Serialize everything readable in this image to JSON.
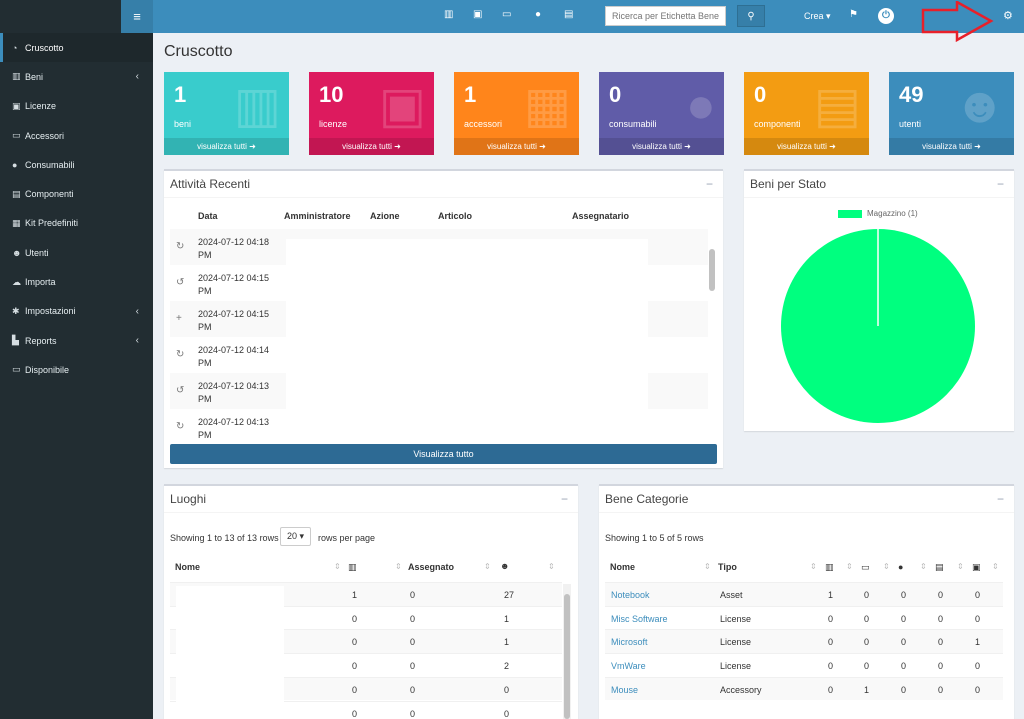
{
  "sidebar": {
    "items": [
      {
        "label": "Cruscotto",
        "icon": "dashboard-icon",
        "glyph": "◔",
        "active": true,
        "chevron": false
      },
      {
        "label": "Beni",
        "icon": "barcode-icon",
        "glyph": "▥",
        "active": false,
        "chevron": true
      },
      {
        "label": "Licenze",
        "icon": "save-icon",
        "glyph": "▣",
        "active": false,
        "chevron": false
      },
      {
        "label": "Accessori",
        "icon": "keyboard-icon",
        "glyph": "▭",
        "active": false,
        "chevron": false
      },
      {
        "label": "Consumabili",
        "icon": "drop-icon",
        "glyph": "●",
        "active": false,
        "chevron": false
      },
      {
        "label": "Componenti",
        "icon": "hdd-icon",
        "glyph": "▤",
        "active": false,
        "chevron": false
      },
      {
        "label": "Kit Predefiniti",
        "icon": "object-group-icon",
        "glyph": "▦",
        "active": false,
        "chevron": false
      },
      {
        "label": "Utenti",
        "icon": "users-icon",
        "glyph": "☻",
        "active": false,
        "chevron": false
      },
      {
        "label": "Importa",
        "icon": "cloud-upload-icon",
        "glyph": "☁",
        "active": false,
        "chevron": false
      },
      {
        "label": "Impostazioni",
        "icon": "cog-icon",
        "glyph": "✱",
        "active": false,
        "chevron": true
      },
      {
        "label": "Reports",
        "icon": "chart-icon",
        "glyph": "▙",
        "active": false,
        "chevron": true
      },
      {
        "label": "Disponibile",
        "icon": "laptop-icon",
        "glyph": "▭",
        "active": false,
        "chevron": false
      }
    ]
  },
  "header": {
    "search_placeholder": "Ricerca per Etichetta Bene",
    "create_label": "Crea ▾"
  },
  "page": {
    "title": "Cruscotto"
  },
  "tiles": [
    {
      "count": "1",
      "label": "beni",
      "link": "visualizza tutti ➜",
      "color": "#39cccc",
      "icon": "barcode-icon",
      "glyph": "▥"
    },
    {
      "count": "10",
      "label": "licenze",
      "link": "visualizza tutti ➜",
      "color": "#dd1a5e",
      "icon": "save-icon",
      "glyph": "▣"
    },
    {
      "count": "1",
      "label": "accessori",
      "link": "visualizza tutti ➜",
      "color": "#ff851b",
      "icon": "keyboard-icon",
      "glyph": "▦"
    },
    {
      "count": "0",
      "label": "consumabili",
      "link": "visualizza tutti ➜",
      "color": "#605ca8",
      "icon": "drop-icon",
      "glyph": "●"
    },
    {
      "count": "0",
      "label": "componenti",
      "link": "visualizza tutti ➜",
      "color": "#f39c12",
      "icon": "hdd-icon",
      "glyph": "▤"
    },
    {
      "count": "49",
      "label": "utenti",
      "link": "visualizza tutti ➜",
      "color": "#3c8dbc",
      "icon": "users-icon",
      "glyph": "☻"
    }
  ],
  "recent": {
    "title": "Attività Recenti",
    "headers": [
      "Data",
      "Amministratore",
      "Azione",
      "Articolo",
      "Assegnatario"
    ],
    "rows": [
      {
        "icon": "refresh-icon",
        "glyph": "↻",
        "date": "2024-07-12 04:18 PM"
      },
      {
        "icon": "undo-icon",
        "glyph": "↺",
        "date": "2024-07-12 04:15 PM"
      },
      {
        "icon": "plus-icon",
        "glyph": "+",
        "date": "2024-07-12 04:15 PM"
      },
      {
        "icon": "refresh-icon",
        "glyph": "↻",
        "date": "2024-07-12 04:14 PM"
      },
      {
        "icon": "undo-icon",
        "glyph": "↺",
        "date": "2024-07-12 04:13 PM"
      },
      {
        "icon": "refresh-icon",
        "glyph": "↻",
        "date": "2024-07-12 04:13 PM"
      }
    ],
    "view_all": "Visualizza tutto"
  },
  "status_chart": {
    "title": "Beni per Stato",
    "legend": "Magazzino (1)",
    "color": "#00ff7f"
  },
  "locations": {
    "title": "Luoghi",
    "info": "Showing 1 to 13 of 13 rows",
    "page_size": "20 ▾",
    "rows_label": "rows per page",
    "headers": {
      "name": "Nome",
      "assigned": "Assegnato"
    },
    "rows": [
      {
        "assets": "1",
        "assigned": "0",
        "users": "27"
      },
      {
        "assets": "0",
        "assigned": "0",
        "users": "1"
      },
      {
        "assets": "0",
        "assigned": "0",
        "users": "1"
      },
      {
        "assets": "0",
        "assigned": "0",
        "users": "2"
      },
      {
        "assets": "0",
        "assigned": "0",
        "users": "0"
      },
      {
        "assets": "0",
        "assigned": "0",
        "users": "0"
      }
    ]
  },
  "categories": {
    "title": "Bene Categorie",
    "info": "Showing 1 to 5 of 5 rows",
    "headers": {
      "name": "Nome",
      "type": "Tipo"
    },
    "rows": [
      {
        "name": "Notebook",
        "type": "Asset",
        "c1": "1",
        "c2": "0",
        "c3": "0",
        "c4": "0",
        "c5": "0"
      },
      {
        "name": "Misc Software",
        "type": "License",
        "c1": "0",
        "c2": "0",
        "c3": "0",
        "c4": "0",
        "c5": "0"
      },
      {
        "name": "Microsoft",
        "type": "License",
        "c1": "0",
        "c2": "0",
        "c3": "0",
        "c4": "0",
        "c5": "1"
      },
      {
        "name": "VmWare",
        "type": "License",
        "c1": "0",
        "c2": "0",
        "c3": "0",
        "c4": "0",
        "c5": "0"
      },
      {
        "name": "Mouse",
        "type": "Accessory",
        "c1": "0",
        "c2": "1",
        "c3": "0",
        "c4": "0",
        "c5": "0"
      }
    ]
  }
}
